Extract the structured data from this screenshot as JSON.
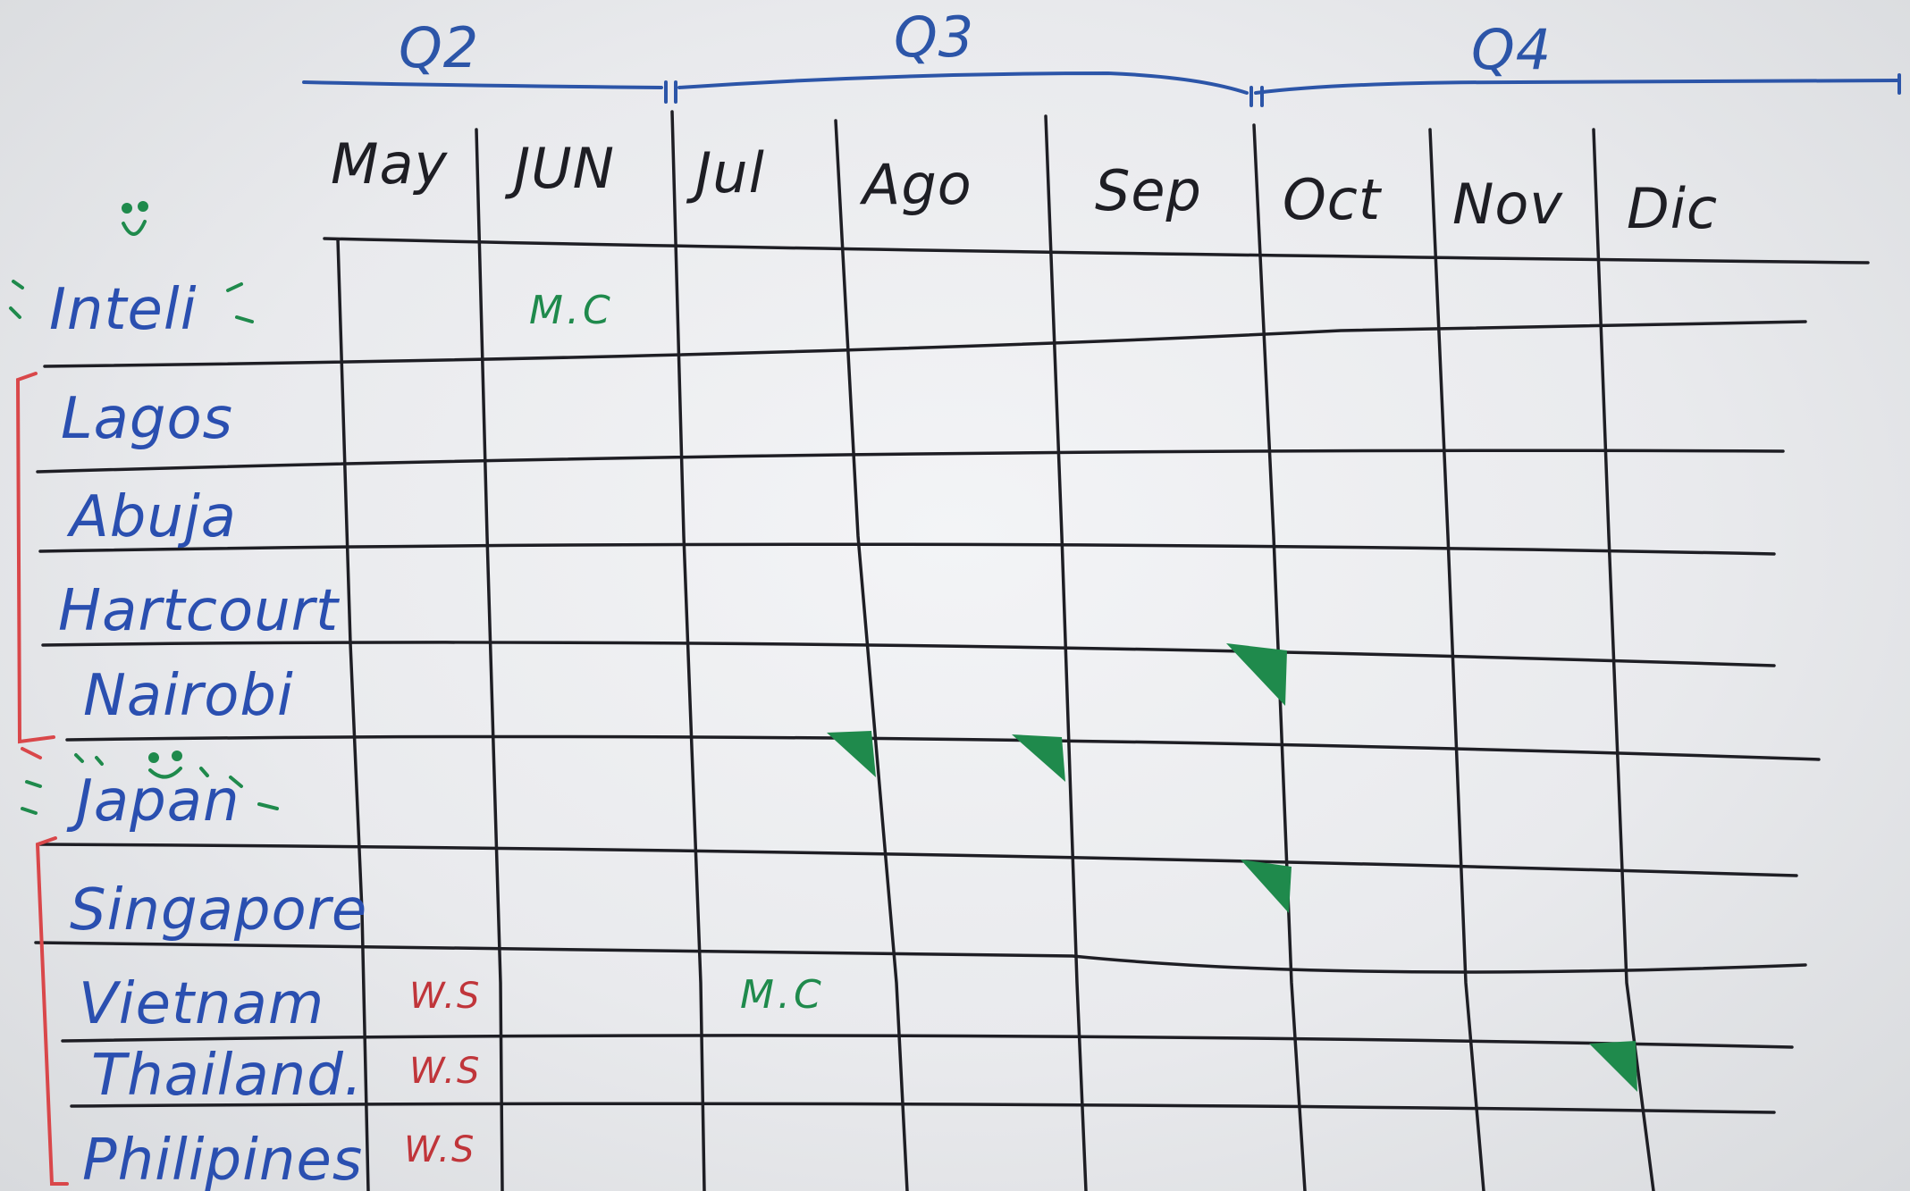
{
  "colors": {
    "board": "#eceef0",
    "grid": "#1e1e24",
    "blue_marker": "#2a4fb0",
    "green_marker": "#1f8a4c",
    "red_marker": "#d9474a"
  },
  "quarters": [
    {
      "label": "Q2",
      "months": [
        "May",
        "JUN"
      ]
    },
    {
      "label": "Q3",
      "months": [
        "Jul",
        "Ago",
        "Sep"
      ]
    },
    {
      "label": "Q4",
      "months": [
        "Oct",
        "Nov",
        "Dic"
      ]
    }
  ],
  "months": [
    "May",
    "JUN",
    "Jul",
    "Ago",
    "Sep",
    "Oct",
    "Nov",
    "Dic"
  ],
  "rows": [
    "Inteli",
    "Lagos",
    "Abuja",
    "Hartcourt",
    "Nairobi",
    "Japan",
    "Singapore",
    "Vietnam",
    "Thailand.",
    "Philipines"
  ],
  "cell_notes": [
    {
      "row": "Inteli",
      "month": "JUN",
      "text": "M.C",
      "color": "green"
    },
    {
      "row": "Vietnam",
      "month": "May",
      "text": "W.S",
      "color": "red"
    },
    {
      "row": "Thailand.",
      "month": "May",
      "text": "W.S",
      "color": "red"
    },
    {
      "row": "Philipines",
      "month": "May",
      "text": "W.S",
      "color": "red"
    },
    {
      "row": "Vietnam",
      "month": "Jul",
      "text": "M.C",
      "color": "green"
    }
  ],
  "groups": [
    {
      "bracket_color": "red",
      "rows": [
        "Lagos",
        "Abuja",
        "Hartcourt",
        "Nairobi"
      ]
    },
    {
      "bracket_color": "red",
      "rows": [
        "Singapore",
        "Vietnam",
        "Thailand.",
        "Philipines"
      ]
    }
  ],
  "decorations": [
    "smiley-face-icon",
    "shaded-triangle-icon"
  ]
}
